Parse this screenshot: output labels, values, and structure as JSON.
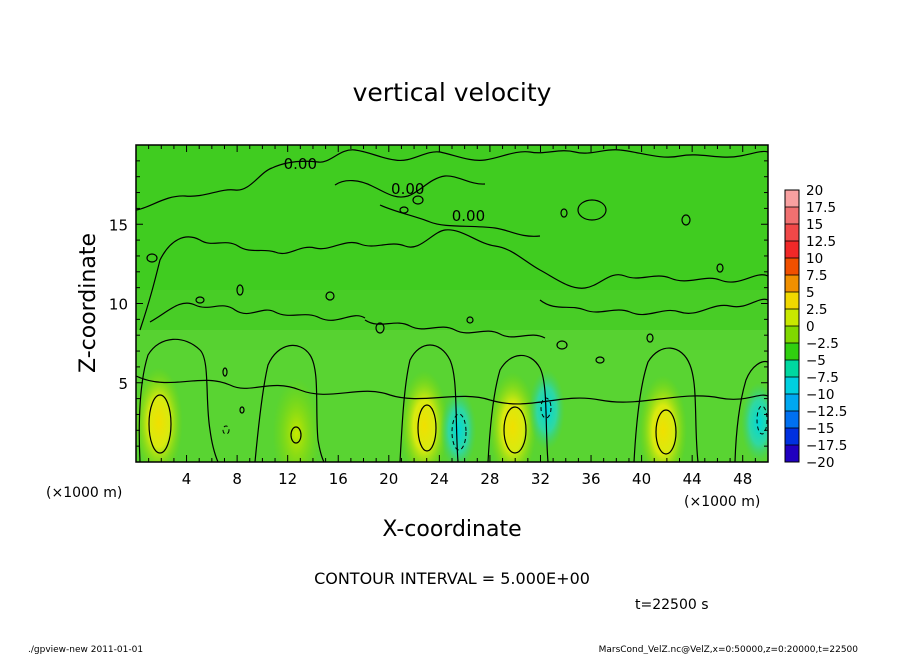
{
  "chart_data": {
    "type": "heatmap",
    "title": "vertical velocity",
    "xlabel": "X-coordinate",
    "ylabel": "Z-coordinate",
    "x_unit": "(×1000 m)",
    "z_unit": "(×1000 m)",
    "xlim": [
      0,
      50
    ],
    "ylim": [
      0,
      20
    ],
    "xticks": [
      4,
      8,
      12,
      16,
      20,
      24,
      28,
      32,
      36,
      40,
      44,
      48
    ],
    "yticks": [
      5,
      10,
      15
    ],
    "contour_interval_text": "CONTOUR INTERVAL = 5.000E+00",
    "time_text": "t=22500 s",
    "contour_labels": [
      {
        "text": "0.00",
        "x": 13,
        "z": 18.5
      },
      {
        "text": "0.00",
        "x": 21.5,
        "z": 16.9
      },
      {
        "text": "0.00",
        "x": 26.3,
        "z": 15.2
      }
    ],
    "colorbar": {
      "levels": [
        "20",
        "17.5",
        "15",
        "12.5",
        "10",
        "7.5",
        "5",
        "2.5",
        "0",
        "−2.5",
        "−5",
        "−7.5",
        "−10",
        "−12.5",
        "−15",
        "−17.5",
        "−20"
      ],
      "colors": [
        "#f8a0a0",
        "#f07070",
        "#f04848",
        "#f02828",
        "#f05000",
        "#f09000",
        "#f0d800",
        "#c8e800",
        "#80d800",
        "#30d010",
        "#00d8a0",
        "#00d0e0",
        "#00a8f0",
        "#0070f0",
        "#0030e0",
        "#2000c0",
        "#6000b0"
      ]
    },
    "features": [
      {
        "type": "updraft",
        "x": 1.8,
        "z": 2.5,
        "peak": 7.5
      },
      {
        "type": "updraft",
        "x": 12.7,
        "z": 1.8,
        "peak": 5
      },
      {
        "type": "updraft",
        "x": 22.8,
        "z": 2.3,
        "peak": 7.5
      },
      {
        "type": "updraft",
        "x": 29.8,
        "z": 2.2,
        "peak": 7.5
      },
      {
        "type": "updraft",
        "x": 41.7,
        "z": 2.0,
        "peak": 7.5
      },
      {
        "type": "downdraft",
        "x": 25.5,
        "z": 2.0,
        "peak": -5
      },
      {
        "type": "downdraft",
        "x": 32.5,
        "z": 3.3,
        "peak": -2.5
      },
      {
        "type": "downdraft",
        "x": 49.3,
        "z": 2.5,
        "peak": -5
      }
    ]
  },
  "footer": {
    "left": "./gpview-new  2011-01-01",
    "right": "MarsCond_VelZ.nc@VelZ,x=0:50000,z=0:20000,t=22500"
  }
}
